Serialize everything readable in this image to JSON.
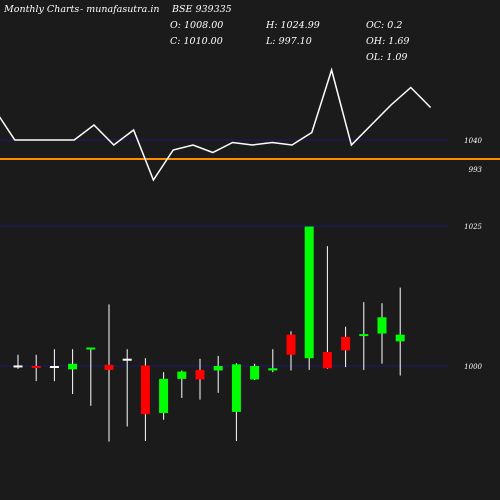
{
  "header": {
    "brand": "Monthly Charts",
    "site": "-  munafasutra.in",
    "symbol": "BSE 939335",
    "open": "O: 1008.00",
    "close": "C: 1010.00",
    "high": "H: 1024.99",
    "low": "L: 997.10",
    "oc": "OC: 0.2",
    "oh": "OH: 1.69",
    "ol": "OL: 1.09"
  },
  "colors": {
    "background": "#1b1b1b",
    "up": "#00ff00",
    "down": "#ff0000",
    "neutral": "#ffffff",
    "line": "#ffffff",
    "price_line": "#ff8c00",
    "grid": "#1a1a6e",
    "text": "#ffffff"
  },
  "chart_data": [
    {
      "type": "line",
      "title": "",
      "y_tick_labels": [
        "1040",
        "993"
      ],
      "highlight_level": "993",
      "values": [
        1052,
        1040,
        1040,
        1040,
        1040,
        1046,
        1038,
        1044,
        1024,
        1036,
        1038,
        1035,
        1039,
        1038,
        1039,
        1038,
        1043,
        1068,
        1038,
        1046,
        1054,
        1061,
        1053
      ]
    },
    {
      "type": "candlestick",
      "title": "",
      "y_tick_labels": [
        "1025",
        "1000"
      ],
      "candles": [
        {
          "open": 1000.1,
          "high": 1002.0,
          "low": 999.5,
          "close": 999.9,
          "dir": "neutral"
        },
        {
          "open": 1000.0,
          "high": 1002.0,
          "low": 997.3,
          "close": 999.8,
          "dir": "down"
        },
        {
          "open": 1000.0,
          "high": 1003.0,
          "low": 997.3,
          "close": 999.7,
          "dir": "neutral"
        },
        {
          "open": 999.4,
          "high": 1003.0,
          "low": 995.0,
          "close": 1000.4,
          "dir": "up"
        },
        {
          "open": 1003.0,
          "high": 1003.2,
          "low": 992.9,
          "close": 1003.3,
          "dir": "up"
        },
        {
          "open": 1000.2,
          "high": 1011.0,
          "low": 986.5,
          "close": 999.3,
          "dir": "down"
        },
        {
          "open": 1001.3,
          "high": 1003.0,
          "low": 989.2,
          "close": 1001.1,
          "dir": "neutral"
        },
        {
          "open": 1000.1,
          "high": 1001.4,
          "low": 986.6,
          "close": 991.4,
          "dir": "down"
        },
        {
          "open": 997.7,
          "high": 998.9,
          "low": 990.4,
          "close": 991.6,
          "dir": "up"
        },
        {
          "open": 997.7,
          "high": 999.2,
          "low": 994.3,
          "close": 999.0,
          "dir": "up"
        },
        {
          "open": 999.3,
          "high": 1001.3,
          "low": 994.0,
          "close": 997.6,
          "dir": "down"
        },
        {
          "open": 999.2,
          "high": 1001.8,
          "low": 995.2,
          "close": 1000.0,
          "dir": "up"
        },
        {
          "open": 1000.3,
          "high": 1000.5,
          "low": 986.6,
          "close": 991.8,
          "dir": "up"
        },
        {
          "open": 997.6,
          "high": 1000.4,
          "low": 997.5,
          "close": 1000.0,
          "dir": "up"
        },
        {
          "open": 999.2,
          "high": 1003.0,
          "low": 998.9,
          "close": 999.6,
          "dir": "up"
        },
        {
          "open": 1005.6,
          "high": 1006.2,
          "low": 999.2,
          "close": 1002.0,
          "dir": "down"
        },
        {
          "open": 1001.4,
          "high": 1024.9,
          "low": 999.3,
          "close": 1024.9,
          "dir": "up"
        },
        {
          "open": 999.6,
          "high": 1021.4,
          "low": 999.5,
          "close": 1002.5,
          "dir": "down"
        },
        {
          "open": 1002.8,
          "high": 1007.0,
          "low": 999.8,
          "close": 1005.2,
          "dir": "down"
        },
        {
          "open": 1005.7,
          "high": 1011.4,
          "low": 999.3,
          "close": 1005.4,
          "dir": "up"
        },
        {
          "open": 1005.8,
          "high": 1011.2,
          "low": 1000.4,
          "close": 1008.7,
          "dir": "up"
        },
        {
          "open": 1004.4,
          "high": 1014.0,
          "low": 998.3,
          "close": 1005.6,
          "dir": "up"
        }
      ]
    }
  ]
}
